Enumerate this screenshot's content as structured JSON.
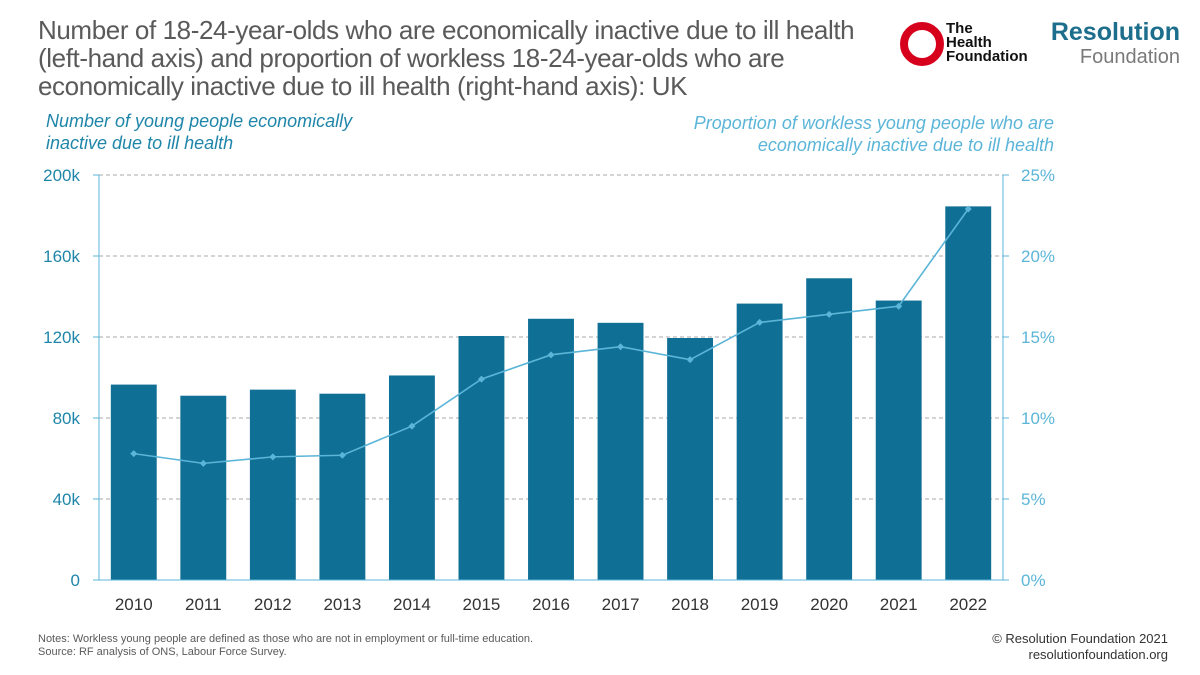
{
  "header": {
    "title": "Number of 18-24-year-olds who are economically inactive due to ill health (left-hand axis) and proportion of workless 18-24-year-olds who are economically inactive due to ill health (right-hand axis): UK"
  },
  "logos": {
    "health_line1": "The",
    "health_line2": "Health",
    "health_line3": "Foundation",
    "rf_line1": "Resolution",
    "rf_line2": "Foundation"
  },
  "footer": {
    "note_line1": "Notes: Workless young people are defined as those who are not in employment or full-time education.",
    "note_line2": "Source: RF analysis of ONS, Labour Force Survey.",
    "copyright_line1": "© Resolution Foundation 2021",
    "copyright_line2": "resolutionfoundation.org"
  },
  "chart_data": {
    "type": "bar",
    "title": "Number of 18-24-year-olds who are economically inactive due to ill health (left-hand axis) and proportion of workless 18-24-year-olds who are economically inactive due to ill health (right-hand axis): UK",
    "categories": [
      "2010",
      "2011",
      "2012",
      "2013",
      "2014",
      "2015",
      "2016",
      "2017",
      "2018",
      "2019",
      "2020",
      "2021",
      "2022"
    ],
    "series": [
      {
        "name": "Number of young people economically inactive due to ill health",
        "type": "bar",
        "axis": "left",
        "color": "#0f6f95",
        "values": [
          96500,
          91000,
          94000,
          92000,
          101000,
          120500,
          129000,
          127000,
          119500,
          136500,
          149000,
          138000,
          184500
        ]
      },
      {
        "name": "Proportion of workless young people who are economically inactive due to ill health",
        "type": "line",
        "axis": "right",
        "color": "#5bb5d8",
        "values": [
          7.8,
          7.2,
          7.6,
          7.7,
          9.5,
          12.4,
          13.9,
          14.4,
          13.6,
          15.9,
          16.4,
          16.9,
          22.9
        ]
      }
    ],
    "left_axis": {
      "label_line1": "Number of young people economically",
      "label_line2": "inactive due to ill health",
      "ylim": [
        0,
        200000
      ],
      "ticks": [
        0,
        40000,
        80000,
        120000,
        160000,
        200000
      ],
      "tick_labels": [
        "0",
        "40k",
        "80k",
        "120k",
        "160k",
        "200k"
      ]
    },
    "right_axis": {
      "label_line1": "Proportion of workless young people who are",
      "label_line2": "economically inactive due to ill health",
      "ylim": [
        0,
        25
      ],
      "ticks": [
        0,
        5,
        10,
        15,
        20,
        25
      ],
      "tick_labels": [
        "0%",
        "5%",
        "10%",
        "15%",
        "20%",
        "25%"
      ]
    },
    "grid": true,
    "axis_color": "#5bb5d8",
    "grid_color": "#a8a8a8",
    "tick_color": "#1f86a9"
  }
}
